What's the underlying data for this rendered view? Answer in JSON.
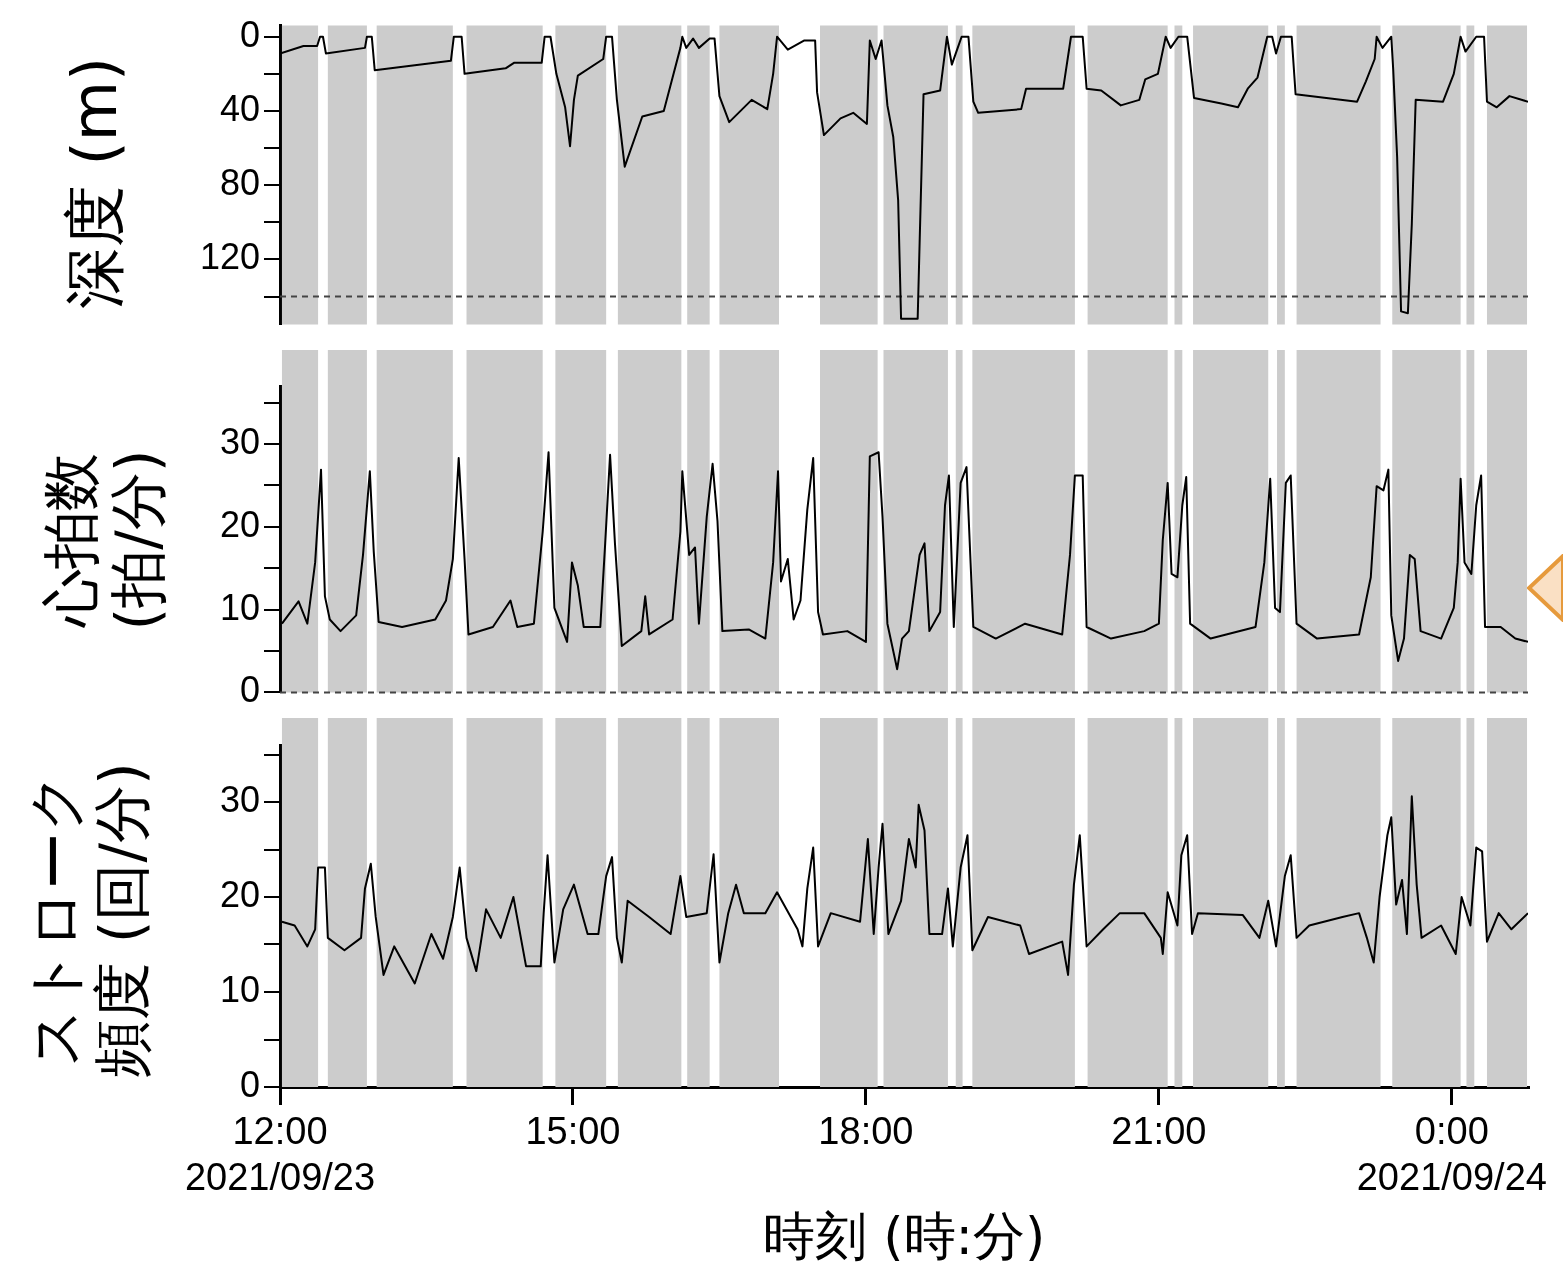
{
  "chart_data": [
    {
      "type": "line",
      "ylabel": "深度 (m)",
      "xlim": [
        12,
        24.78
      ],
      "ylim": [
        155,
        -6
      ],
      "tick_labels": "y",
      "yticks": [
        0,
        {
          "value": 20,
          "label": null
        },
        40,
        {
          "value": 60,
          "label": null
        },
        80,
        {
          "value": 100,
          "label": null
        },
        120,
        {
          "value": 140,
          "label": null
        }
      ],
      "ref_lines": [
        {
          "axis": "y",
          "value": 140,
          "color": "#444444",
          "line_style": "dashed"
        }
      ],
      "bands": [
        {
          "axis": "x",
          "from": 12.02,
          "to": 12.39,
          "color": "#cccccc"
        },
        {
          "axis": "x",
          "from": 12.49,
          "to": 12.89,
          "color": "#cccccc"
        },
        {
          "axis": "x",
          "from": 12.99,
          "to": 13.77,
          "color": "#cccccc"
        },
        {
          "axis": "x",
          "from": 13.91,
          "to": 14.69,
          "color": "#cccccc"
        },
        {
          "axis": "x",
          "from": 14.82,
          "to": 15.34,
          "color": "#cccccc"
        },
        {
          "axis": "x",
          "from": 15.46,
          "to": 16.11,
          "color": "#cccccc"
        },
        {
          "axis": "x",
          "from": 16.17,
          "to": 16.4,
          "color": "#cccccc"
        },
        {
          "axis": "x",
          "from": 16.5,
          "to": 17.11,
          "color": "#cccccc"
        },
        {
          "axis": "x",
          "from": 17.53,
          "to": 18.12,
          "color": "#cccccc"
        },
        {
          "axis": "x",
          "from": 18.18,
          "to": 18.84,
          "color": "#cccccc"
        },
        {
          "axis": "x",
          "from": 18.92,
          "to": 18.99,
          "color": "#cccccc"
        },
        {
          "axis": "x",
          "from": 19.09,
          "to": 20.14,
          "color": "#cccccc"
        },
        {
          "axis": "x",
          "from": 20.27,
          "to": 21.09,
          "color": "#cccccc"
        },
        {
          "axis": "x",
          "from": 21.16,
          "to": 21.24,
          "color": "#cccccc"
        },
        {
          "axis": "x",
          "from": 21.35,
          "to": 22.12,
          "color": "#cccccc"
        },
        {
          "axis": "x",
          "from": 22.21,
          "to": 22.29,
          "color": "#cccccc"
        },
        {
          "axis": "x",
          "from": 22.41,
          "to": 23.27,
          "color": "#cccccc"
        },
        {
          "axis": "x",
          "from": 23.39,
          "to": 24.09,
          "color": "#cccccc"
        },
        {
          "axis": "x",
          "from": 24.15,
          "to": 24.23,
          "color": "#cccccc"
        },
        {
          "axis": "x",
          "from": 24.36,
          "to": 24.77,
          "color": "#cccccc"
        }
      ],
      "series": [
        {
          "color": "#000000",
          "x": [
            12.0,
            12.24,
            12.38,
            12.41,
            12.44,
            12.47,
            12.87,
            12.89,
            12.94,
            12.97,
            13.75,
            13.78,
            13.86,
            13.89,
            14.31,
            14.4,
            14.68,
            14.71,
            14.77,
            14.83,
            14.92,
            14.97,
            15.01,
            15.05,
            15.31,
            15.34,
            15.4,
            15.45,
            15.53,
            15.71,
            15.93,
            16.0,
            16.1,
            16.12,
            16.16,
            16.23,
            16.29,
            16.4,
            16.45,
            16.5,
            16.6,
            16.83,
            16.99,
            17.05,
            17.09,
            17.2,
            17.37,
            17.48,
            17.5,
            17.57,
            17.74,
            17.87,
            18.01,
            18.04,
            18.1,
            18.16,
            18.22,
            18.28,
            18.33,
            18.36,
            18.53,
            18.55,
            18.59,
            18.76,
            18.83,
            18.88,
            18.94,
            18.98,
            19.05,
            19.1,
            19.15,
            19.59,
            19.64,
            20.02,
            20.1,
            20.22,
            20.26,
            20.41,
            20.61,
            20.8,
            20.86,
            20.99,
            21.07,
            21.12,
            21.2,
            21.29,
            21.36,
            21.64,
            21.81,
            21.91,
            22.01,
            22.11,
            22.16,
            22.2,
            22.25,
            22.36,
            22.4,
            23.03,
            23.12,
            23.21,
            23.23,
            23.29,
            23.38,
            23.4,
            23.44,
            23.48,
            23.55,
            23.59,
            23.63,
            23.91,
            24.02,
            24.09,
            24.14,
            24.25,
            24.33,
            24.36,
            24.46,
            24.59,
            24.78
          ],
          "values": [
            9,
            5,
            5,
            0,
            0,
            9,
            6,
            0,
            0,
            18,
            13,
            0,
            0,
            20,
            17,
            14,
            14,
            0,
            0,
            20,
            38,
            59,
            34,
            21,
            12,
            0,
            0,
            34,
            70,
            43,
            40,
            26,
            6,
            0,
            6,
            1,
            6,
            1,
            1,
            32,
            46,
            34,
            39,
            20,
            0,
            7,
            2,
            2,
            30,
            53,
            44,
            41,
            47,
            2,
            12,
            2,
            37,
            54,
            88,
            152,
            152,
            111,
            31,
            29,
            0,
            15,
            6,
            0,
            0,
            35,
            41,
            39,
            28,
            28,
            0,
            0,
            28,
            29,
            37,
            34,
            23,
            20,
            0,
            6,
            0,
            0,
            33,
            36,
            38,
            28,
            22,
            0,
            0,
            9,
            0,
            0,
            31,
            35,
            24,
            12,
            0,
            6,
            0,
            18,
            65,
            148,
            149,
            101,
            34,
            35,
            20,
            0,
            8,
            0,
            0,
            35,
            38,
            32,
            35
          ]
        }
      ]
    },
    {
      "type": "line",
      "ylabel": "心拍数 (拍/分)",
      "xlim": [
        12,
        24.78
      ],
      "ylim": [
        0,
        37
      ],
      "tick_labels": "y",
      "yticks": [
        0,
        {
          "value": 5,
          "label": null
        },
        10,
        {
          "value": 15,
          "label": null
        },
        20,
        {
          "value": 25,
          "label": null
        },
        30,
        {
          "value": 35,
          "label": null
        }
      ],
      "ref_lines": [
        {
          "axis": "y",
          "value": 0,
          "color": "#444444",
          "line_style": "dashed"
        }
      ],
      "bands": [
        {
          "axis": "x",
          "from": 12.02,
          "to": 12.39,
          "color": "#cccccc"
        },
        {
          "axis": "x",
          "from": 12.49,
          "to": 12.89,
          "color": "#cccccc"
        },
        {
          "axis": "x",
          "from": 12.99,
          "to": 13.77,
          "color": "#cccccc"
        },
        {
          "axis": "x",
          "from": 13.91,
          "to": 14.69,
          "color": "#cccccc"
        },
        {
          "axis": "x",
          "from": 14.82,
          "to": 15.34,
          "color": "#cccccc"
        },
        {
          "axis": "x",
          "from": 15.46,
          "to": 16.11,
          "color": "#cccccc"
        },
        {
          "axis": "x",
          "from": 16.17,
          "to": 16.4,
          "color": "#cccccc"
        },
        {
          "axis": "x",
          "from": 16.5,
          "to": 17.11,
          "color": "#cccccc"
        },
        {
          "axis": "x",
          "from": 17.53,
          "to": 18.12,
          "color": "#cccccc"
        },
        {
          "axis": "x",
          "from": 18.18,
          "to": 18.84,
          "color": "#cccccc"
        },
        {
          "axis": "x",
          "from": 18.92,
          "to": 18.99,
          "color": "#cccccc"
        },
        {
          "axis": "x",
          "from": 19.09,
          "to": 20.14,
          "color": "#cccccc"
        },
        {
          "axis": "x",
          "from": 20.27,
          "to": 21.09,
          "color": "#cccccc"
        },
        {
          "axis": "x",
          "from": 21.16,
          "to": 21.24,
          "color": "#cccccc"
        },
        {
          "axis": "x",
          "from": 21.35,
          "to": 22.12,
          "color": "#cccccc"
        },
        {
          "axis": "x",
          "from": 22.21,
          "to": 22.29,
          "color": "#cccccc"
        },
        {
          "axis": "x",
          "from": 22.41,
          "to": 23.27,
          "color": "#cccccc"
        },
        {
          "axis": "x",
          "from": 23.39,
          "to": 24.09,
          "color": "#cccccc"
        },
        {
          "axis": "x",
          "from": 24.15,
          "to": 24.23,
          "color": "#cccccc"
        },
        {
          "axis": "x",
          "from": 24.36,
          "to": 24.77,
          "color": "#cccccc"
        }
      ],
      "series": [
        {
          "color": "#000000",
          "x": [
            12.02,
            12.19,
            12.28,
            12.36,
            12.42,
            12.46,
            12.51,
            12.62,
            12.78,
            12.85,
            12.92,
            12.96,
            13.01,
            13.25,
            13.59,
            13.7,
            13.77,
            13.83,
            13.89,
            13.93,
            14.18,
            14.36,
            14.43,
            14.6,
            14.69,
            14.75,
            14.81,
            14.94,
            14.99,
            15.05,
            15.11,
            15.28,
            15.33,
            15.38,
            15.43,
            15.5,
            15.7,
            15.74,
            15.78,
            16.02,
            16.1,
            16.12,
            16.19,
            16.25,
            16.29,
            16.37,
            16.43,
            16.48,
            16.53,
            16.8,
            16.97,
            17.05,
            17.1,
            17.13,
            17.2,
            17.26,
            17.33,
            17.4,
            17.46,
            17.51,
            17.56,
            17.81,
            18.0,
            18.04,
            18.13,
            18.17,
            18.22,
            18.32,
            18.37,
            18.44,
            18.55,
            18.6,
            18.65,
            18.76,
            18.81,
            18.85,
            18.9,
            18.97,
            19.03,
            19.1,
            19.33,
            19.63,
            20.01,
            20.09,
            20.14,
            20.22,
            20.26,
            20.51,
            20.85,
            21.0,
            21.04,
            21.09,
            21.13,
            21.19,
            21.24,
            21.28,
            21.32,
            21.53,
            21.99,
            22.08,
            22.14,
            22.19,
            22.24,
            22.3,
            22.35,
            22.41,
            22.62,
            23.05,
            23.17,
            23.23,
            23.3,
            23.35,
            23.38,
            23.45,
            23.51,
            23.57,
            23.62,
            23.68,
            23.89,
            24.02,
            24.06,
            24.09,
            24.13,
            24.2,
            24.25,
            24.3,
            24.34,
            24.5,
            24.65,
            24.78
          ],
          "values": [
            8.3,
            11,
            8.3,
            15.7,
            26.9,
            11.6,
            8.8,
            7.4,
            9.3,
            16.6,
            26.7,
            17,
            8.5,
            7.9,
            8.8,
            11.1,
            16.1,
            28.3,
            16.1,
            7,
            7.9,
            11.1,
            7.9,
            8.3,
            19.4,
            29,
            10.2,
            6.1,
            15.7,
            12.9,
            7.9,
            7.9,
            18,
            28.7,
            18,
            5.6,
            7.4,
            11.6,
            7,
            8.8,
            19.4,
            26.7,
            16.6,
            17.5,
            8.3,
            21.2,
            27.6,
            20.7,
            7.4,
            7.6,
            6.5,
            15.7,
            26.7,
            13.4,
            16.1,
            8.8,
            11.1,
            22.1,
            28.3,
            9.7,
            7,
            7.4,
            6.1,
            28.5,
            29,
            21.2,
            8.3,
            2.8,
            6.5,
            7.4,
            16.6,
            18,
            7.4,
            9.7,
            22.6,
            26.2,
            7.9,
            25.3,
            27.2,
            7.9,
            6.5,
            8.3,
            7,
            16.6,
            26.2,
            26.2,
            7.9,
            6.5,
            7.4,
            8.3,
            18.4,
            25.3,
            14.3,
            13.9,
            22.6,
            26,
            8.3,
            6.5,
            7.9,
            15.7,
            25.8,
            10.2,
            9.7,
            25.3,
            26.2,
            8.3,
            6.5,
            7,
            13.9,
            24.9,
            24.4,
            26.9,
            9.3,
            3.8,
            6.5,
            16.6,
            16.1,
            7.4,
            6.5,
            10.2,
            15.7,
            25.8,
            15.7,
            14.3,
            22.6,
            26.2,
            7.9,
            7.9,
            6.5,
            6.1
          ]
        }
      ]
    },
    {
      "type": "line",
      "ylabel": "ストローク頻度 (回/分)",
      "xlabel": "時刻 (時:分)",
      "xlim": [
        12,
        24.78
      ],
      "ylim": [
        0,
        36
      ],
      "xticks": [
        {
          "value": 12,
          "label": "12:00\n2021/09/23"
        },
        {
          "value": 15,
          "label": "15:00"
        },
        {
          "value": 18,
          "label": "18:00"
        },
        {
          "value": 21,
          "label": "21:00"
        },
        {
          "value": 24,
          "label": "0:00\n2021/09/24"
        }
      ],
      "yticks": [
        0,
        {
          "value": 5,
          "label": null
        },
        10,
        {
          "value": 15,
          "label": null
        },
        20,
        {
          "value": 25,
          "label": null
        },
        30,
        {
          "value": 35,
          "label": null
        }
      ],
      "bands": [
        {
          "axis": "x",
          "from": 12.02,
          "to": 12.39,
          "color": "#cccccc"
        },
        {
          "axis": "x",
          "from": 12.49,
          "to": 12.89,
          "color": "#cccccc"
        },
        {
          "axis": "x",
          "from": 12.99,
          "to": 13.77,
          "color": "#cccccc"
        },
        {
          "axis": "x",
          "from": 13.91,
          "to": 14.69,
          "color": "#cccccc"
        },
        {
          "axis": "x",
          "from": 14.82,
          "to": 15.34,
          "color": "#cccccc"
        },
        {
          "axis": "x",
          "from": 15.46,
          "to": 16.11,
          "color": "#cccccc"
        },
        {
          "axis": "x",
          "from": 16.17,
          "to": 16.4,
          "color": "#cccccc"
        },
        {
          "axis": "x",
          "from": 16.5,
          "to": 17.11,
          "color": "#cccccc"
        },
        {
          "axis": "x",
          "from": 17.53,
          "to": 18.12,
          "color": "#cccccc"
        },
        {
          "axis": "x",
          "from": 18.18,
          "to": 18.84,
          "color": "#cccccc"
        },
        {
          "axis": "x",
          "from": 18.92,
          "to": 18.99,
          "color": "#cccccc"
        },
        {
          "axis": "x",
          "from": 19.09,
          "to": 20.14,
          "color": "#cccccc"
        },
        {
          "axis": "x",
          "from": 20.27,
          "to": 21.09,
          "color": "#cccccc"
        },
        {
          "axis": "x",
          "from": 21.16,
          "to": 21.24,
          "color": "#cccccc"
        },
        {
          "axis": "x",
          "from": 21.35,
          "to": 22.12,
          "color": "#cccccc"
        },
        {
          "axis": "x",
          "from": 22.21,
          "to": 22.29,
          "color": "#cccccc"
        },
        {
          "axis": "x",
          "from": 22.41,
          "to": 23.27,
          "color": "#cccccc"
        },
        {
          "axis": "x",
          "from": 23.39,
          "to": 24.09,
          "color": "#cccccc"
        },
        {
          "axis": "x",
          "from": 24.15,
          "to": 24.23,
          "color": "#cccccc"
        },
        {
          "axis": "x",
          "from": 24.36,
          "to": 24.77,
          "color": "#cccccc"
        }
      ],
      "series": [
        {
          "color": "#000000",
          "x": [
            12.02,
            12.15,
            12.28,
            12.36,
            12.39,
            12.46,
            12.49,
            12.66,
            12.83,
            12.87,
            12.93,
            12.98,
            13.06,
            13.17,
            13.38,
            13.55,
            13.67,
            13.77,
            13.84,
            13.91,
            14.01,
            14.11,
            14.26,
            14.39,
            14.52,
            14.67,
            14.7,
            14.74,
            14.81,
            14.9,
            15.01,
            15.15,
            15.26,
            15.34,
            15.4,
            15.45,
            15.5,
            15.56,
            15.78,
            16.0,
            16.1,
            16.16,
            16.37,
            16.44,
            16.5,
            16.59,
            16.67,
            16.75,
            16.97,
            17.09,
            17.3,
            17.35,
            17.4,
            17.46,
            17.51,
            17.64,
            17.94,
            18.02,
            18.08,
            18.13,
            18.17,
            18.23,
            18.36,
            18.44,
            18.51,
            18.54,
            18.6,
            18.65,
            18.78,
            18.84,
            18.89,
            18.97,
            19.04,
            19.09,
            19.25,
            19.58,
            19.67,
            20.01,
            20.07,
            20.13,
            20.19,
            20.26,
            20.43,
            20.6,
            20.85,
            21.02,
            21.04,
            21.09,
            21.19,
            21.23,
            21.29,
            21.34,
            21.4,
            21.86,
            22.03,
            22.12,
            22.2,
            22.29,
            22.35,
            22.41,
            22.54,
            22.88,
            23.05,
            23.13,
            23.2,
            23.26,
            23.34,
            23.38,
            23.43,
            23.49,
            23.54,
            23.59,
            23.64,
            23.69,
            23.89,
            24.04,
            24.1,
            24.19,
            24.25,
            24.31,
            24.36,
            24.48,
            24.61,
            24.78
          ],
          "values": [
            17.4,
            17,
            14.8,
            16.6,
            23.1,
            23.1,
            15.7,
            14.4,
            15.7,
            20.9,
            23.5,
            17.9,
            11.8,
            14.8,
            10.9,
            16.1,
            13.5,
            17.9,
            23.1,
            15.7,
            12.2,
            18.7,
            15.7,
            20,
            12.7,
            12.7,
            18.3,
            24.4,
            13.1,
            18.7,
            21.3,
            16.1,
            16.1,
            22.2,
            24.2,
            15.7,
            13.1,
            19.6,
            17.9,
            16.1,
            22.2,
            17.9,
            18.3,
            24.5,
            13.1,
            18.3,
            21.3,
            18.3,
            18.3,
            20.5,
            16.6,
            14.8,
            20.9,
            25.2,
            14.8,
            18.3,
            17.4,
            26.1,
            16.1,
            23.1,
            27.7,
            16.1,
            19.6,
            26.1,
            23.1,
            29.7,
            27,
            16.1,
            16.1,
            20.9,
            14.8,
            23.1,
            26.5,
            14.4,
            17.9,
            17,
            14,
            15.3,
            11.8,
            21.3,
            26.5,
            14.8,
            16.6,
            18.3,
            18.3,
            15.7,
            14,
            20.5,
            17,
            24.4,
            26.5,
            16.1,
            18.3,
            18.1,
            15.7,
            19.6,
            14.8,
            22.2,
            24.4,
            15.7,
            17,
            17.9,
            18.3,
            15.7,
            13.1,
            20,
            26.5,
            28.4,
            19.2,
            21.8,
            16.1,
            30.6,
            21.3,
            15.7,
            17,
            14,
            20,
            17,
            25.2,
            24.8,
            15.3,
            18.3,
            16.6,
            18.3
          ]
        }
      ]
    }
  ]
}
